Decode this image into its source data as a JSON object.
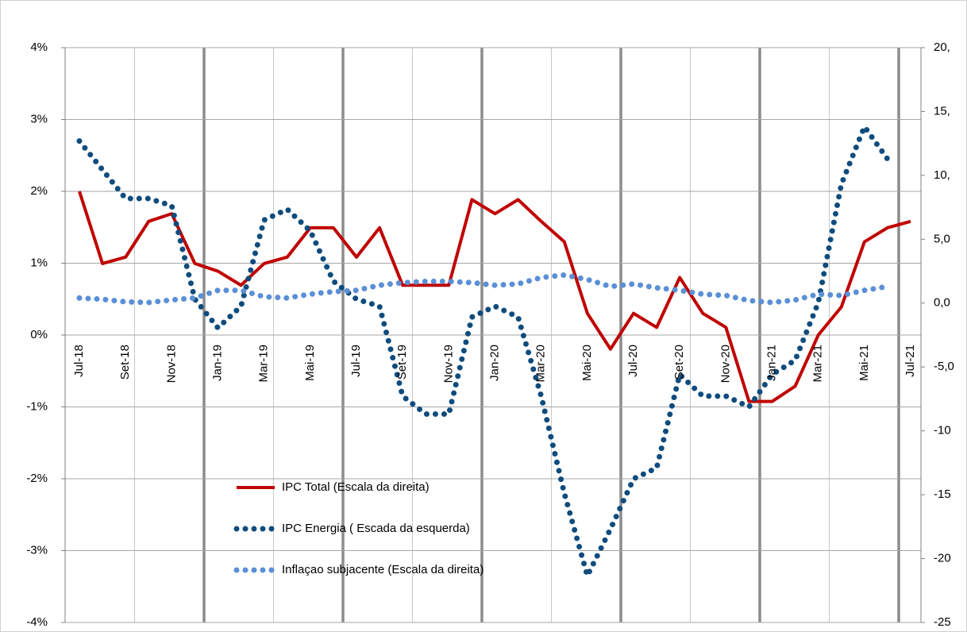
{
  "chart_data": {
    "type": "line",
    "categories": [
      "Jul-18",
      null,
      "Set-18",
      null,
      "Nov-18",
      null,
      "Jan-19",
      null,
      "Mar-19",
      null,
      "Mai-19",
      null,
      "Jul-19",
      null,
      "Set-19",
      null,
      "Nov-19",
      null,
      "Jan-20",
      null,
      "Mar-20",
      null,
      "Mai-20",
      null,
      "Jul-20",
      null,
      "Set-20",
      null,
      "Nov-20",
      null,
      "Jan-21",
      null,
      "Mar-21",
      null,
      "Mai-21",
      null,
      "Jul-21"
    ],
    "series": [
      {
        "name": "IPC Total (Escala da  direita)",
        "color": "#c00000",
        "style": "solid",
        "axis": "y2",
        "values": [
          8.75,
          3.1,
          3.6,
          6.4,
          7.0,
          3.1,
          2.5,
          1.4,
          3.1,
          3.6,
          5.9,
          5.9,
          3.6,
          5.9,
          1.4,
          1.4,
          1.4,
          8.1,
          7.0,
          8.1,
          6.4,
          4.8,
          -0.8,
          -3.6,
          -0.8,
          -1.9,
          2.0,
          -0.8,
          -1.9,
          -7.7,
          -7.7,
          -6.5,
          -2.5,
          -0.3,
          4.8,
          5.9,
          6.4
        ]
      },
      {
        "name": "IPC Energia ( Escada da esquerda)",
        "color": "#0f4c7d",
        "style": "dotted",
        "values": [
          2.7,
          2.3,
          1.9,
          1.9,
          1.8,
          0.5,
          0.1,
          0.4,
          1.6,
          1.75,
          1.45,
          0.75,
          0.5,
          0.4,
          -0.85,
          -1.1,
          -1.1,
          0.25,
          0.4,
          0.25,
          -0.85,
          -2.2,
          -3.35,
          -2.7,
          -2.0,
          -1.85,
          -0.55,
          -0.85,
          -0.85,
          -1.0,
          -0.55,
          -0.35,
          0.45,
          2.1,
          2.9,
          2.45,
          null
        ]
      },
      {
        "name": "Inflaçao subjacente (Escala da direita)",
        "color": "#5b8fd6",
        "style": "dotted",
        "axis": "y2",
        "values": [
          0.4,
          0.3,
          0.1,
          0.05,
          0.25,
          0.4,
          1.0,
          1.0,
          0.5,
          0.4,
          0.7,
          0.9,
          1.0,
          1.4,
          1.6,
          1.7,
          1.7,
          1.6,
          1.4,
          1.5,
          2.0,
          2.2,
          1.85,
          1.3,
          1.5,
          1.2,
          1.0,
          0.7,
          0.6,
          0.2,
          0.05,
          0.25,
          0.7,
          0.6,
          1.0,
          1.3,
          null
        ]
      }
    ],
    "ylim": [
      -4,
      4
    ],
    "yticks": [
      {
        "value": 4,
        "label": "4%"
      },
      {
        "value": 3,
        "label": "3%"
      },
      {
        "value": 2,
        "label": "2%"
      },
      {
        "value": 1,
        "label": "1%"
      },
      {
        "value": 0,
        "label": "0%"
      },
      {
        "value": -1,
        "label": "-1%"
      },
      {
        "value": -2,
        "label": "-2%"
      },
      {
        "value": -3,
        "label": "-3%"
      },
      {
        "value": -4,
        "label": "-4%"
      }
    ],
    "y2lim": [
      -25,
      20
    ],
    "y2ticks": [
      {
        "value": 20,
        "label": "20,"
      },
      {
        "value": 15,
        "label": "15,"
      },
      {
        "value": 10,
        "label": "10,"
      },
      {
        "value": 5,
        "label": "5,0"
      },
      {
        "value": 0,
        "label": "0,0"
      },
      {
        "value": -5,
        "label": "-5,0"
      },
      {
        "value": -10,
        "label": "-10"
      },
      {
        "value": -15,
        "label": "-15"
      },
      {
        "value": -20,
        "label": "-20"
      },
      {
        "value": -25,
        "label": "-25"
      }
    ],
    "grid": true
  }
}
